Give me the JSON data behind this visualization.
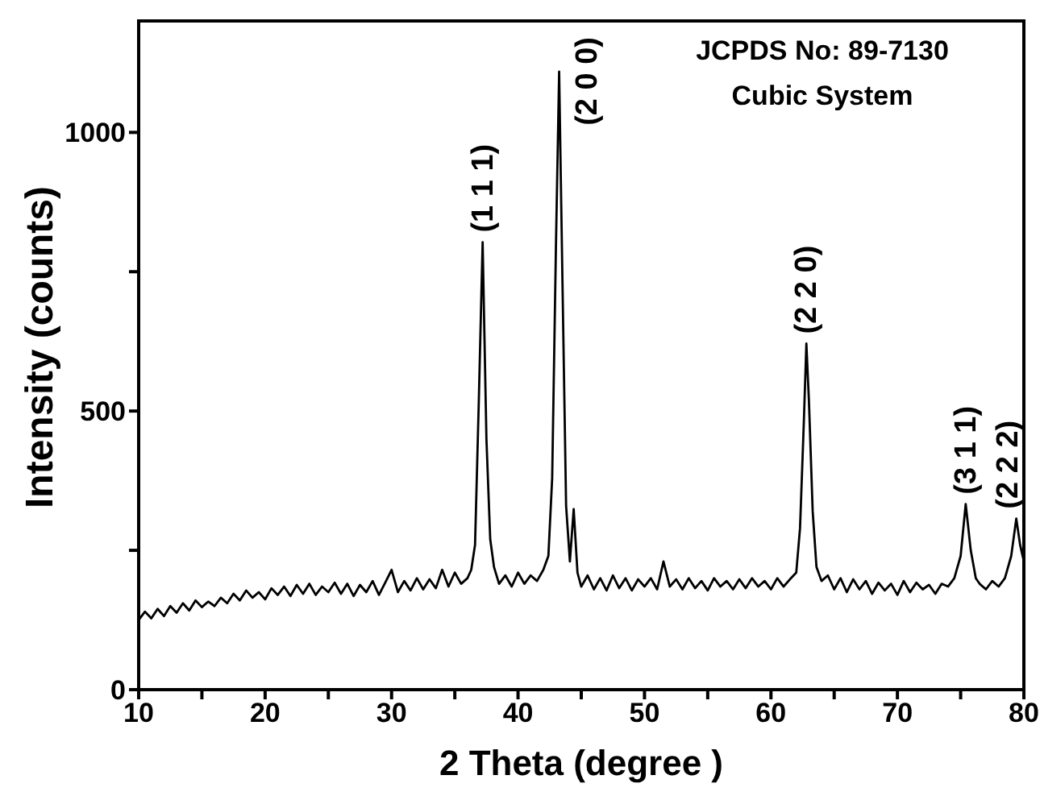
{
  "chart_data": {
    "type": "line",
    "xlabel": "2 Theta (degree )",
    "ylabel": "Intensity (counts)",
    "xlim": [
      10,
      80
    ],
    "xticks": [
      10,
      {
        "value": 15,
        "label": null
      },
      20,
      {
        "value": 25,
        "label": null
      },
      30,
      {
        "value": 35,
        "label": null
      },
      40,
      {
        "value": 45,
        "label": null
      },
      50,
      {
        "value": 55,
        "label": null
      },
      60,
      {
        "value": 65,
        "label": null
      },
      70,
      {
        "value": 75,
        "label": null
      },
      80
    ],
    "ylim": [
      0,
      1200
    ],
    "yticks": [
      0,
      {
        "value": 250,
        "label": null
      },
      500,
      {
        "value": 750,
        "label": null
      },
      1000
    ],
    "grid": false,
    "legend": false,
    "marker": "none",
    "line_style": "solid",
    "series": [
      {
        "color": "#000000",
        "x": [
          10,
          10.5,
          11,
          11.5,
          12,
          12.5,
          13,
          13.5,
          14,
          14.5,
          15,
          15.5,
          16,
          16.5,
          17,
          17.5,
          18,
          18.5,
          19,
          19.5,
          20,
          20.5,
          21,
          21.5,
          22,
          22.5,
          23,
          23.5,
          24,
          24.5,
          25,
          25.5,
          26,
          26.5,
          27,
          27.5,
          28,
          28.5,
          29,
          29.5,
          30,
          30.5,
          31,
          31.5,
          32,
          32.5,
          33,
          33.5,
          34,
          34.5,
          35,
          35.5,
          36,
          36.3,
          36.6,
          36.9,
          37.2,
          37.5,
          37.8,
          38.1,
          38.5,
          39,
          39.5,
          40,
          40.5,
          41,
          41.5,
          42,
          42.4,
          42.7,
          43,
          43.25,
          43.5,
          43.8,
          44.1,
          44.4,
          44.7,
          45,
          45.5,
          46,
          46.5,
          47,
          47.5,
          48,
          48.5,
          49,
          49.5,
          50,
          50.5,
          51,
          51.5,
          52,
          52.5,
          53,
          53.5,
          54,
          54.5,
          55,
          55.5,
          56,
          56.5,
          57,
          57.5,
          58,
          58.5,
          59,
          59.5,
          60,
          60.5,
          61,
          61.5,
          62,
          62.3,
          62.6,
          62.8,
          63,
          63.3,
          63.6,
          64,
          64.5,
          65,
          65.5,
          66,
          66.5,
          67,
          67.5,
          68,
          68.5,
          69,
          69.5,
          70,
          70.5,
          71,
          71.5,
          72,
          72.5,
          73,
          73.5,
          74,
          74.5,
          75,
          75.4,
          75.8,
          76.2,
          76.5,
          77,
          77.5,
          78,
          78.5,
          79,
          79.4,
          79.7,
          80
        ],
        "values": [
          125,
          140,
          128,
          145,
          132,
          150,
          138,
          155,
          142,
          160,
          148,
          158,
          150,
          165,
          155,
          172,
          160,
          178,
          165,
          175,
          162,
          182,
          170,
          185,
          168,
          188,
          172,
          190,
          170,
          185,
          175,
          192,
          172,
          190,
          168,
          188,
          175,
          195,
          170,
          192,
          215,
          175,
          195,
          178,
          200,
          180,
          198,
          182,
          215,
          185,
          210,
          190,
          200,
          215,
          260,
          520,
          803,
          450,
          270,
          220,
          190,
          205,
          185,
          210,
          190,
          205,
          195,
          215,
          240,
          380,
          800,
          1109,
          750,
          330,
          230,
          324,
          210,
          185,
          205,
          180,
          200,
          178,
          205,
          182,
          200,
          178,
          198,
          185,
          200,
          180,
          230,
          185,
          198,
          180,
          200,
          182,
          195,
          178,
          200,
          185,
          195,
          180,
          198,
          182,
          200,
          185,
          195,
          180,
          200,
          185,
          198,
          210,
          290,
          480,
          621,
          520,
          320,
          220,
          195,
          205,
          180,
          200,
          175,
          198,
          180,
          195,
          172,
          192,
          178,
          190,
          170,
          195,
          175,
          192,
          180,
          188,
          172,
          190,
          185,
          200,
          240,
          333,
          250,
          200,
          190,
          180,
          195,
          185,
          200,
          240,
          307,
          260,
          230
        ]
      }
    ],
    "annotations": [
      {
        "text": "(1 1 1)",
        "x": 37.2,
        "y": 803
      },
      {
        "text": "(2 0 0)",
        "x": 43.25,
        "y": 1109
      },
      {
        "text": "(2 2 0)",
        "x": 62.8,
        "y": 621
      },
      {
        "text": "(3 1 1)",
        "x": 75.4,
        "y": 333
      },
      {
        "text": "(2 2 2)",
        "x": 79.4,
        "y": 307
      },
      "JCPDS No: 89-7130",
      "Cubic System"
    ]
  }
}
